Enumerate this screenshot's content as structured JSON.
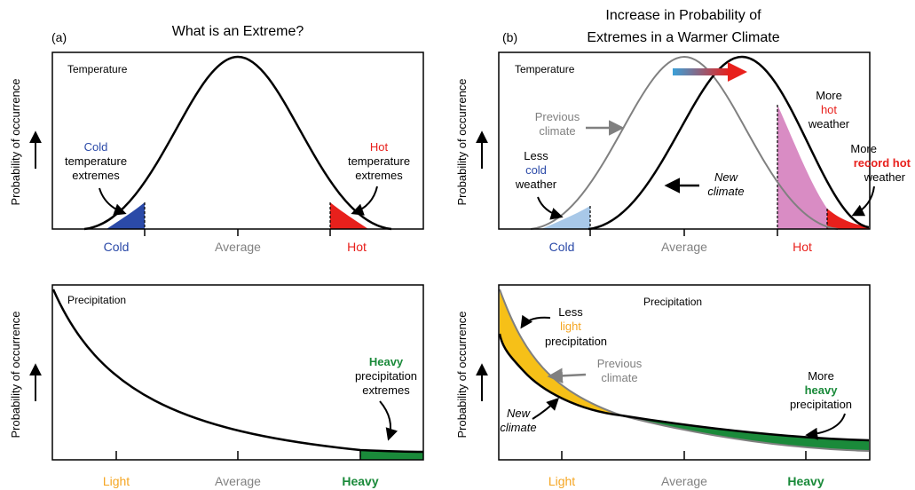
{
  "colors": {
    "cold_blue": "#2b4aa8",
    "cold_light": "#a8c8e8",
    "hot_red": "#e8201c",
    "pink": "#d98cc4",
    "orange": "#f5a623",
    "yellow_fill": "#f6c018",
    "green": "#1a8a3a",
    "gray": "#808080",
    "gradient_start": "#3aa0d8",
    "gradient_end": "#e8201c"
  },
  "panel_a": {
    "label": "(a)",
    "title": "What is an Extreme?",
    "temperature": {
      "heading": "Temperature",
      "y_label": "Probability of occurrence",
      "cold_word": "Cold",
      "cold_rest_1": "temperature",
      "cold_rest_2": "extremes",
      "hot_word": "Hot",
      "hot_rest_1": "temperature",
      "hot_rest_2": "extremes",
      "ticks": [
        "Cold",
        "Average",
        "Hot"
      ]
    },
    "precipitation": {
      "heading": "Precipitation",
      "y_label": "Probability of occurrence",
      "heavy_word": "Heavy",
      "heavy_rest_1": "precipitation",
      "heavy_rest_2": "extremes",
      "ticks": [
        "Light",
        "Average",
        "Heavy"
      ]
    }
  },
  "panel_b": {
    "label": "(b)",
    "title_line1": "Increase in Probability of",
    "title_line2": "Extremes in a Warmer Climate",
    "temperature": {
      "heading": "Temperature",
      "y_label": "Probability of occurrence",
      "previous_1": "Previous",
      "previous_2": "climate",
      "new_1": "New",
      "new_2": "climate",
      "less_cold_1": "Less",
      "less_cold_2": "cold",
      "less_cold_3": "weather",
      "more_hot_1": "More",
      "more_hot_2": "hot",
      "more_hot_3": "weather",
      "record_1": "More",
      "record_2": "record hot",
      "record_3": "weather",
      "ticks": [
        "Cold",
        "Average",
        "Hot"
      ]
    },
    "precipitation": {
      "heading": "Precipitation",
      "y_label": "Probability of occurrence",
      "less_light_1": "Less",
      "less_light_2": "light",
      "less_light_3": "precipitation",
      "previous_1": "Previous",
      "previous_2": "climate",
      "new_1": "New",
      "new_2": "climate",
      "more_heavy_1": "More",
      "more_heavy_2": "heavy",
      "more_heavy_3": "precipitation",
      "ticks": [
        "Light",
        "Average",
        "Heavy"
      ]
    }
  }
}
